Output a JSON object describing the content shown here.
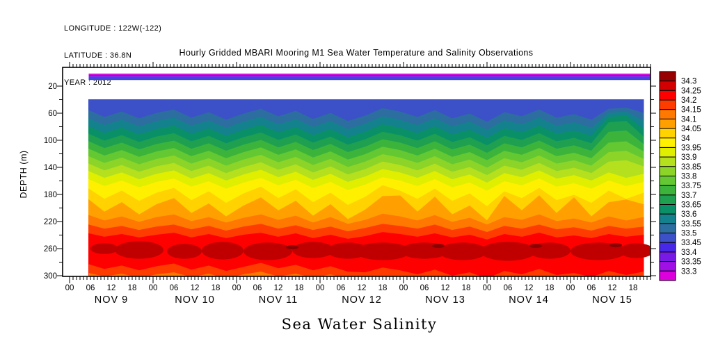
{
  "header": {
    "longitude": "LONGITUDE : 122W(-122)",
    "latitude": "LATITUDE : 36.8N",
    "year": "YEAR : 2012"
  },
  "title": "Hourly Gridded MBARI Mooring M1 Sea Water Temperature and Salinity Observations",
  "footer_title": "Sea Water Salinity",
  "y_axis": {
    "label": "DEPTH (m)",
    "major_ticks": [
      20,
      60,
      100,
      140,
      180,
      220,
      260,
      300
    ],
    "minor_ticks": [
      40,
      80,
      120,
      160,
      200,
      240,
      280
    ]
  },
  "x_axis": {
    "hour_labels": [
      "00",
      "06",
      "12",
      "18"
    ],
    "day_labels": [
      "NOV  9",
      "NOV 10",
      "NOV 11",
      "NOV 12",
      "NOV 13",
      "NOV 14",
      "NOV 15"
    ]
  },
  "colorbar": {
    "labels": [
      "34.3",
      "34.25",
      "34.2",
      "34.15",
      "34.1",
      "34.05",
      "34",
      "33.95",
      "33.9",
      "33.85",
      "33.8",
      "33.75",
      "33.7",
      "33.65",
      "33.6",
      "33.55",
      "33.5",
      "33.45",
      "33.4",
      "33.35",
      "33.3"
    ],
    "colors": [
      "#960000",
      "#D20000",
      "#FF0000",
      "#FF3C00",
      "#FF7800",
      "#FFA000",
      "#FFD200",
      "#FFF000",
      "#E0EE00",
      "#B4E01E",
      "#8CD428",
      "#64C832",
      "#3CB43C",
      "#1EA050",
      "#0A9066",
      "#14828C",
      "#2D6EA0",
      "#3C50C8",
      "#4628E6",
      "#7819E6",
      "#A00FE6",
      "#DC00DC"
    ]
  },
  "chart_data": {
    "type": "heatmap",
    "subtype": "filled-contour-time-depth-section",
    "title": "Hourly Gridded MBARI Mooring M1 Sea Water Temperature and Salinity Observations",
    "xlabel_days": [
      "NOV 9",
      "NOV 10",
      "NOV 11",
      "NOV 12",
      "NOV 13",
      "NOV 14",
      "NOV 15"
    ],
    "ylabel": "DEPTH (m)",
    "ylim": [
      0,
      300
    ],
    "colorbar_values": [
      34.3,
      34.25,
      34.2,
      34.15,
      34.1,
      34.05,
      34.0,
      33.95,
      33.9,
      33.85,
      33.8,
      33.75,
      33.7,
      33.65,
      33.6,
      33.55,
      33.5,
      33.45,
      33.4,
      33.35,
      33.3
    ],
    "data_start_hour": 5.5,
    "data_end_hour": 167,
    "sample_hours": [
      5.5,
      10,
      15,
      20,
      25,
      30,
      35,
      40,
      45,
      50,
      55,
      60,
      65,
      70,
      75,
      80,
      85,
      90,
      95,
      100,
      105,
      110,
      115,
      120,
      125,
      130,
      135,
      140,
      145,
      150,
      155,
      160,
      165
    ],
    "field_top_depth": 40,
    "field_bottom_depth": 300,
    "surface_strip": {
      "layers": [
        {
          "salinity": "<33.3",
          "color": "#DC00DC",
          "from_depth": 1.5,
          "to_depth": 3.5
        },
        {
          "salinity": "33.3-33.4",
          "color": "#7819E6",
          "from_depth": 3.5,
          "to_depth": 6.5
        },
        {
          "salinity": "33.4-33.5",
          "color": "#4146DC",
          "from_depth": 6.5,
          "to_depth": 11
        }
      ]
    },
    "bands": [
      {
        "salinity": "33.45-33.50",
        "color": "#3C50C8",
        "bottom_depths": [
          56,
          66,
          58,
          68,
          60,
          55,
          67,
          59,
          70,
          61,
          54,
          65,
          57,
          69,
          60,
          72,
          64,
          53,
          58,
          66,
          56,
          68,
          61,
          73,
          59,
          65,
          55,
          67,
          62,
          70,
          54,
          52,
          60
        ]
      },
      {
        "salinity": "33.50-33.55",
        "color": "#2D6EA0",
        "bottom_depths": [
          68,
          78,
          70,
          80,
          72,
          67,
          79,
          71,
          82,
          73,
          66,
          77,
          69,
          81,
          72,
          84,
          76,
          65,
          70,
          78,
          68,
          80,
          73,
          85,
          71,
          77,
          67,
          79,
          74,
          82,
          60,
          58,
          72
        ]
      },
      {
        "salinity": "33.55-33.60",
        "color": "#14828C",
        "bottom_depths": [
          80,
          90,
          82,
          92,
          84,
          79,
          91,
          83,
          94,
          85,
          78,
          89,
          81,
          93,
          84,
          96,
          88,
          77,
          82,
          90,
          80,
          92,
          85,
          97,
          83,
          89,
          79,
          91,
          86,
          94,
          66,
          64,
          84
        ]
      },
      {
        "salinity": "33.60-33.65",
        "color": "#0A9066",
        "bottom_depths": [
          91,
          101,
          93,
          103,
          95,
          90,
          102,
          94,
          105,
          96,
          89,
          100,
          92,
          104,
          95,
          107,
          99,
          88,
          93,
          101,
          91,
          103,
          96,
          108,
          94,
          100,
          90,
          102,
          97,
          105,
          74,
          72,
          95
        ]
      },
      {
        "salinity": "33.65-33.70",
        "color": "#1EA050",
        "bottom_depths": [
          102,
          112,
          104,
          114,
          106,
          101,
          113,
          105,
          116,
          107,
          100,
          111,
          103,
          115,
          106,
          118,
          110,
          99,
          104,
          112,
          102,
          114,
          107,
          119,
          105,
          111,
          101,
          113,
          108,
          116,
          88,
          86,
          106
        ]
      },
      {
        "salinity": "33.70-33.75",
        "color": "#3CB43C",
        "bottom_depths": [
          113,
          123,
          115,
          125,
          117,
          112,
          124,
          116,
          127,
          118,
          111,
          122,
          114,
          126,
          117,
          129,
          121,
          110,
          115,
          123,
          113,
          125,
          118,
          130,
          116,
          122,
          112,
          124,
          119,
          127,
          104,
          102,
          117
        ]
      },
      {
        "salinity": "33.75-33.80",
        "color": "#64C832",
        "bottom_depths": [
          124,
          134,
          126,
          136,
          128,
          123,
          135,
          127,
          138,
          129,
          122,
          133,
          125,
          137,
          128,
          140,
          132,
          121,
          126,
          134,
          124,
          136,
          129,
          141,
          127,
          133,
          123,
          135,
          130,
          138,
          118,
          116,
          128
        ]
      },
      {
        "salinity": "33.80-33.85",
        "color": "#8CD428",
        "bottom_depths": [
          135,
          145,
          137,
          147,
          139,
          134,
          146,
          138,
          149,
          140,
          133,
          144,
          136,
          148,
          139,
          151,
          143,
          132,
          137,
          145,
          135,
          147,
          140,
          152,
          138,
          144,
          134,
          146,
          141,
          149,
          132,
          130,
          139
        ]
      },
      {
        "salinity": "33.85-33.90",
        "color": "#B4E01E",
        "bottom_depths": [
          146,
          156,
          148,
          158,
          150,
          145,
          157,
          149,
          160,
          151,
          144,
          155,
          147,
          159,
          150,
          162,
          154,
          143,
          148,
          156,
          146,
          158,
          151,
          163,
          149,
          155,
          145,
          157,
          152,
          160,
          148,
          156,
          150
        ]
      },
      {
        "salinity": "33.90-33.95",
        "color": "#E0EE00",
        "bottom_depths": [
          158,
          168,
          160,
          170,
          162,
          157,
          169,
          161,
          172,
          163,
          156,
          167,
          159,
          171,
          162,
          174,
          166,
          155,
          160,
          168,
          158,
          170,
          163,
          175,
          161,
          167,
          157,
          169,
          164,
          172,
          160,
          168,
          162
        ]
      },
      {
        "salinity": "33.95-34.00",
        "color": "#FFF000",
        "bottom_depths": [
          172,
          187,
          175,
          190,
          178,
          171,
          189,
          176,
          193,
          179,
          169,
          186,
          173,
          192,
          178,
          196,
          184,
          167,
          175,
          187,
          172,
          190,
          179,
          198,
          176,
          186,
          171,
          189,
          181,
          193,
          175,
          187,
          178
        ]
      },
      {
        "salinity": "34.00-34.05",
        "color": "#FFD200",
        "bottom_depths": [
          188,
          206,
          192,
          210,
          195,
          186,
          208,
          194,
          213,
          197,
          185,
          204,
          190,
          212,
          195,
          217,
          203,
          183,
          182,
          206,
          184,
          210,
          197,
          219,
          183,
          204,
          182,
          208,
          185,
          213,
          192,
          188,
          195
        ]
      },
      {
        "salinity": "34.05-34.10",
        "color": "#FFA000",
        "bottom_depths": [
          211,
          219,
          213,
          221,
          214,
          210,
          220,
          214,
          222,
          215,
          210,
          218,
          212,
          222,
          214,
          224,
          218,
          209,
          213,
          219,
          211,
          221,
          215,
          225,
          214,
          218,
          210,
          220,
          216,
          222,
          213,
          219,
          214
        ]
      },
      {
        "salinity": "34.10-34.15",
        "color": "#FF7800",
        "bottom_depths": [
          225,
          231,
          227,
          233,
          228,
          225,
          232,
          227,
          234,
          228,
          224,
          231,
          226,
          233,
          228,
          235,
          230,
          224,
          227,
          231,
          225,
          233,
          228,
          236,
          227,
          231,
          225,
          232,
          229,
          234,
          227,
          231,
          228
        ]
      },
      {
        "salinity": "34.15-34.20",
        "color": "#FF3C00",
        "bottom_depths": [
          238,
          243,
          239,
          244,
          240,
          237,
          244,
          239,
          245,
          240,
          237,
          243,
          238,
          245,
          240,
          246,
          242,
          236,
          239,
          243,
          238,
          244,
          240,
          247,
          239,
          243,
          237,
          244,
          241,
          245,
          239,
          243,
          240
        ]
      },
      {
        "salinity": "34.20-34.25",
        "color": "#FF0000",
        "bottom_depths": null
      }
    ],
    "bottom_fresh_layer": {
      "salinity": "34.15-34.20",
      "color": "#FF3C00",
      "top_depths": [
        283,
        290,
        285,
        292,
        286,
        282,
        291,
        285,
        293,
        287,
        281,
        289,
        284,
        292,
        286,
        294,
        295,
        288,
        292,
        298,
        291,
        300,
        295,
        304,
        293,
        298,
        290,
        299,
        296,
        302,
        293,
        299,
        294
      ]
    },
    "bottom_edge_patches": {
      "salinity": "34.10-34.15",
      "color": "#FF7800",
      "top_depths": [
        296,
        301,
        297,
        303,
        298,
        295,
        302,
        297,
        304,
        298,
        294,
        301,
        297,
        303,
        298,
        305,
        306,
        302,
        305,
        308,
        304,
        307,
        305,
        309,
        304,
        306,
        303,
        307,
        305,
        308,
        304,
        306,
        305
      ]
    },
    "deep_core_blobs": {
      "salinity": "34.25-34.30",
      "color": "#C00000",
      "blobs": [
        {
          "hour": 10,
          "depth": 260,
          "rx_hours": 4,
          "ry_m": 8
        },
        {
          "hour": 20,
          "depth": 262,
          "rx_hours": 7,
          "ry_m": 13
        },
        {
          "hour": 33,
          "depth": 264,
          "rx_hours": 5,
          "ry_m": 11
        },
        {
          "hour": 44,
          "depth": 263,
          "rx_hours": 6,
          "ry_m": 13
        },
        {
          "hour": 57,
          "depth": 264,
          "rx_hours": 7,
          "ry_m": 13
        },
        {
          "hour": 70,
          "depth": 262,
          "rx_hours": 6,
          "ry_m": 12
        },
        {
          "hour": 80,
          "depth": 263,
          "rx_hours": 6,
          "ry_m": 12
        },
        {
          "hour": 90,
          "depth": 264,
          "rx_hours": 8,
          "ry_m": 13
        },
        {
          "hour": 102,
          "depth": 263,
          "rx_hours": 7,
          "ry_m": 12
        },
        {
          "hour": 113,
          "depth": 264,
          "rx_hours": 7,
          "ry_m": 13
        },
        {
          "hour": 126,
          "depth": 264,
          "rx_hours": 8,
          "ry_m": 14
        },
        {
          "hour": 138,
          "depth": 263,
          "rx_hours": 6,
          "ry_m": 12
        },
        {
          "hour": 152,
          "depth": 264,
          "rx_hours": 8,
          "ry_m": 13
        },
        {
          "hour": 163,
          "depth": 263,
          "rx_hours": 5,
          "ry_m": 11
        }
      ]
    },
    "deep_max_spots": {
      "salinity": ">34.3",
      "color": "#8B0000",
      "spots": [
        {
          "hour": 64,
          "depth": 258
        },
        {
          "hour": 106,
          "depth": 256
        },
        {
          "hour": 134,
          "depth": 256
        },
        {
          "hour": 157,
          "depth": 255
        }
      ]
    }
  }
}
